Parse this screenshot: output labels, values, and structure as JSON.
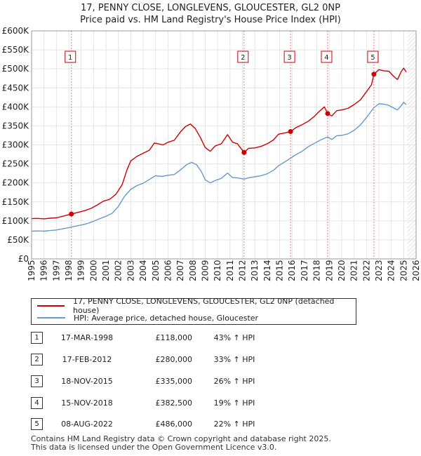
{
  "chart_data": {
    "type": "line",
    "title": "17, PENNY CLOSE, LONGLEVENS, GLOUCESTER, GL2 0NP",
    "subtitle": "Price paid vs. HM Land Registry's House Price Index (HPI)",
    "xlim": [
      1995,
      2026
    ],
    "ylim": [
      0,
      600000
    ],
    "x_ticks": [
      "1995",
      "1996",
      "1997",
      "1998",
      "1999",
      "2000",
      "2001",
      "2002",
      "2003",
      "2004",
      "2005",
      "2006",
      "2007",
      "2008",
      "2009",
      "2010",
      "2011",
      "2012",
      "2013",
      "2014",
      "2015",
      "2016",
      "2017",
      "2018",
      "2019",
      "2020",
      "2021",
      "2022",
      "2023",
      "2024",
      "2025",
      "2026"
    ],
    "y_ticks": [
      {
        "value": 0,
        "label": "£0"
      },
      {
        "value": 50000,
        "label": "£50K"
      },
      {
        "value": 100000,
        "label": "£100K"
      },
      {
        "value": 150000,
        "label": "£150K"
      },
      {
        "value": 200000,
        "label": "£200K"
      },
      {
        "value": 250000,
        "label": "£250K"
      },
      {
        "value": 300000,
        "label": "£300K"
      },
      {
        "value": 350000,
        "label": "£350K"
      },
      {
        "value": 400000,
        "label": "£400K"
      },
      {
        "value": 450000,
        "label": "£450K"
      },
      {
        "value": 500000,
        "label": "£500K"
      },
      {
        "value": 550000,
        "label": "£550K"
      },
      {
        "value": 600000,
        "label": "£600K"
      }
    ],
    "series": [
      {
        "name": "17, PENNY CLOSE, LONGLEVENS, GLOUCESTER, GL2 0NP (detached house)",
        "color": "#cc0000",
        "points": [
          [
            1995.0,
            106000
          ],
          [
            1995.5,
            106500
          ],
          [
            1996.0,
            105500
          ],
          [
            1996.5,
            107000
          ],
          [
            1997.0,
            108000
          ],
          [
            1997.5,
            112000
          ],
          [
            1998.21,
            118000
          ],
          [
            1998.8,
            123000
          ],
          [
            1999.3,
            127000
          ],
          [
            1999.8,
            133000
          ],
          [
            2000.3,
            142000
          ],
          [
            2000.8,
            152000
          ],
          [
            2001.3,
            157000
          ],
          [
            2001.8,
            170000
          ],
          [
            2002.3,
            195000
          ],
          [
            2002.7,
            235000
          ],
          [
            2003.0,
            258000
          ],
          [
            2003.5,
            270000
          ],
          [
            2004.0,
            278000
          ],
          [
            2004.5,
            286000
          ],
          [
            2004.9,
            305000
          ],
          [
            2005.2,
            303000
          ],
          [
            2005.6,
            300000
          ],
          [
            2006.0,
            307000
          ],
          [
            2006.5,
            312000
          ],
          [
            2007.0,
            334000
          ],
          [
            2007.4,
            348000
          ],
          [
            2007.8,
            355000
          ],
          [
            2008.2,
            343000
          ],
          [
            2008.6,
            320000
          ],
          [
            2009.0,
            293000
          ],
          [
            2009.4,
            283000
          ],
          [
            2009.8,
            297000
          ],
          [
            2010.3,
            303000
          ],
          [
            2010.8,
            327000
          ],
          [
            2011.2,
            307000
          ],
          [
            2011.6,
            303000
          ],
          [
            2012.13,
            280000
          ],
          [
            2012.5,
            291000
          ],
          [
            2013.0,
            292000
          ],
          [
            2013.5,
            296000
          ],
          [
            2014.0,
            303000
          ],
          [
            2014.5,
            313000
          ],
          [
            2014.9,
            328000
          ],
          [
            2015.5,
            332000
          ],
          [
            2015.88,
            335000
          ],
          [
            2016.3,
            345000
          ],
          [
            2016.8,
            353000
          ],
          [
            2017.3,
            362000
          ],
          [
            2017.8,
            375000
          ],
          [
            2018.2,
            388000
          ],
          [
            2018.6,
            400000
          ],
          [
            2018.87,
            382500
          ],
          [
            2019.2,
            376000
          ],
          [
            2019.6,
            390000
          ],
          [
            2020.0,
            392000
          ],
          [
            2020.5,
            396000
          ],
          [
            2021.0,
            406000
          ],
          [
            2021.5,
            418000
          ],
          [
            2022.0,
            440000
          ],
          [
            2022.4,
            458000
          ],
          [
            2022.6,
            486000
          ],
          [
            2023.0,
            498000
          ],
          [
            2023.4,
            495000
          ],
          [
            2023.8,
            494000
          ],
          [
            2024.2,
            480000
          ],
          [
            2024.5,
            472000
          ],
          [
            2024.8,
            493000
          ],
          [
            2025.0,
            502000
          ],
          [
            2025.2,
            492000
          ]
        ]
      },
      {
        "name": "HPI: Average price, detached house, Gloucester",
        "color": "#6699cc",
        "points": [
          [
            1995.0,
            73000
          ],
          [
            1995.5,
            73500
          ],
          [
            1996.0,
            73000
          ],
          [
            1996.5,
            74500
          ],
          [
            1997.0,
            76000
          ],
          [
            1997.5,
            79000
          ],
          [
            1998.0,
            82000
          ],
          [
            1998.5,
            86000
          ],
          [
            1999.0,
            89000
          ],
          [
            1999.5,
            93000
          ],
          [
            2000.0,
            99000
          ],
          [
            2000.5,
            106000
          ],
          [
            2001.0,
            112000
          ],
          [
            2001.5,
            120000
          ],
          [
            2002.0,
            138000
          ],
          [
            2002.5,
            165000
          ],
          [
            2003.0,
            183000
          ],
          [
            2003.5,
            193000
          ],
          [
            2004.0,
            199000
          ],
          [
            2004.5,
            209000
          ],
          [
            2005.0,
            219000
          ],
          [
            2005.5,
            217000
          ],
          [
            2006.0,
            220000
          ],
          [
            2006.5,
            222000
          ],
          [
            2007.0,
            234000
          ],
          [
            2007.5,
            248000
          ],
          [
            2007.9,
            254000
          ],
          [
            2008.3,
            248000
          ],
          [
            2008.7,
            229000
          ],
          [
            2009.0,
            208000
          ],
          [
            2009.4,
            200000
          ],
          [
            2009.8,
            206000
          ],
          [
            2010.3,
            212000
          ],
          [
            2010.8,
            226000
          ],
          [
            2011.2,
            214000
          ],
          [
            2011.6,
            213000
          ],
          [
            2012.13,
            210000
          ],
          [
            2012.6,
            214000
          ],
          [
            2013.0,
            216000
          ],
          [
            2013.5,
            219000
          ],
          [
            2014.0,
            224000
          ],
          [
            2014.5,
            233000
          ],
          [
            2014.9,
            245000
          ],
          [
            2015.5,
            257000
          ],
          [
            2015.88,
            265000
          ],
          [
            2016.3,
            274000
          ],
          [
            2016.8,
            283000
          ],
          [
            2017.3,
            295000
          ],
          [
            2017.8,
            304000
          ],
          [
            2018.3,
            313000
          ],
          [
            2018.87,
            321000
          ],
          [
            2019.2,
            314000
          ],
          [
            2019.6,
            324000
          ],
          [
            2020.0,
            325000
          ],
          [
            2020.5,
            329000
          ],
          [
            2021.0,
            338000
          ],
          [
            2021.5,
            352000
          ],
          [
            2022.0,
            372000
          ],
          [
            2022.6,
            398000
          ],
          [
            2023.0,
            408000
          ],
          [
            2023.4,
            407000
          ],
          [
            2023.8,
            404000
          ],
          [
            2024.2,
            397000
          ],
          [
            2024.5,
            392000
          ],
          [
            2024.8,
            403000
          ],
          [
            2025.0,
            412000
          ],
          [
            2025.2,
            406000
          ]
        ]
      }
    ],
    "sale_markers": [
      {
        "label": "1",
        "x": 1998.21,
        "y": 118000
      },
      {
        "label": "2",
        "x": 2012.13,
        "y": 280000
      },
      {
        "label": "3",
        "x": 2015.88,
        "y": 335000
      },
      {
        "label": "4",
        "x": 2018.87,
        "y": 382500
      },
      {
        "label": "5",
        "x": 2022.6,
        "y": 486000
      }
    ],
    "data_end": 2025.3
  },
  "legend": {
    "property_label": "17, PENNY CLOSE, LONGLEVENS, GLOUCESTER, GL2 0NP (detached house)",
    "hpi_label": "HPI: Average price, detached house, Gloucester"
  },
  "sales": [
    {
      "num": "1",
      "date": "17-MAR-1998",
      "price": "£118,000",
      "hpi": "43% ↑ HPI"
    },
    {
      "num": "2",
      "date": "17-FEB-2012",
      "price": "£280,000",
      "hpi": "33% ↑ HPI"
    },
    {
      "num": "3",
      "date": "18-NOV-2015",
      "price": "£335,000",
      "hpi": "26% ↑ HPI"
    },
    {
      "num": "4",
      "date": "15-NOV-2018",
      "price": "£382,500",
      "hpi": "19% ↑ HPI"
    },
    {
      "num": "5",
      "date": "08-AUG-2022",
      "price": "£486,000",
      "hpi": "22% ↑ HPI"
    }
  ],
  "footer": {
    "line1": "Contains HM Land Registry data © Crown copyright and database right 2025.",
    "line2": "This data is licensed under the Open Government Licence v3.0."
  }
}
